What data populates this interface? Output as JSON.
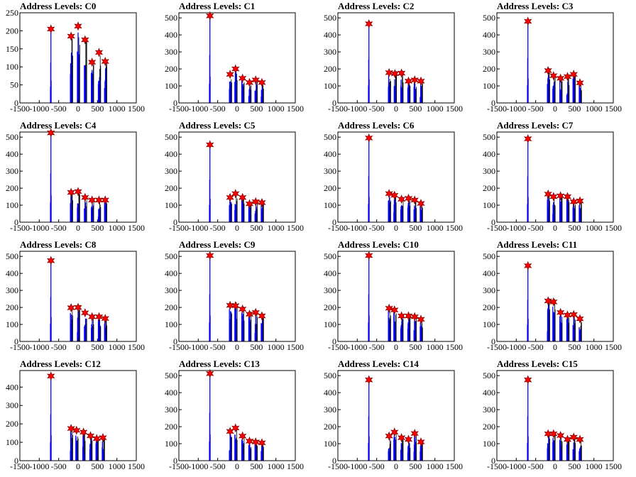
{
  "layout": {
    "columns": 4,
    "rows": 4
  },
  "axis": {
    "xlim": [
      -1500,
      1500
    ],
    "xticks": [
      -1500,
      -1000,
      -500,
      0,
      500,
      1000,
      1500
    ],
    "xtick_labels": [
      "-1500",
      "-1000",
      "-500",
      "0",
      "500",
      "1000",
      "1500"
    ]
  },
  "colors": {
    "hist": "#0000ff",
    "overlay": "#000000",
    "marker_fill": "#ff0000",
    "marker_edge": "#8b0000"
  },
  "chart_data": [
    {
      "type": "bar",
      "title": "Address Levels: C0",
      "ylim": [
        0,
        250
      ],
      "yticks": [
        0,
        50,
        100,
        150,
        200,
        250
      ],
      "xlim": [
        -1500,
        1500
      ],
      "peaks": [
        {
          "x": -700,
          "y": 205
        },
        {
          "x": -180,
          "y": 185
        },
        {
          "x": 0,
          "y": 213
        },
        {
          "x": 180,
          "y": 175
        },
        {
          "x": 360,
          "y": 113
        },
        {
          "x": 540,
          "y": 140
        },
        {
          "x": 700,
          "y": 115
        }
      ]
    },
    {
      "type": "bar",
      "title": "Address Levels: C1",
      "ylim": [
        0,
        530
      ],
      "yticks": [
        0,
        100,
        200,
        300,
        400,
        500
      ],
      "xlim": [
        -1500,
        1500
      ],
      "peaks": [
        {
          "x": -700,
          "y": 512
        },
        {
          "x": -180,
          "y": 168
        },
        {
          "x": -40,
          "y": 200
        },
        {
          "x": 140,
          "y": 145
        },
        {
          "x": 320,
          "y": 120
        },
        {
          "x": 480,
          "y": 135
        },
        {
          "x": 640,
          "y": 120
        }
      ]
    },
    {
      "type": "bar",
      "title": "Address Levels: C2",
      "ylim": [
        0,
        530
      ],
      "yticks": [
        0,
        100,
        200,
        300,
        400,
        500
      ],
      "xlim": [
        -1500,
        1500
      ],
      "peaks": [
        {
          "x": -700,
          "y": 465
        },
        {
          "x": -180,
          "y": 178
        },
        {
          "x": -30,
          "y": 172
        },
        {
          "x": 140,
          "y": 175
        },
        {
          "x": 320,
          "y": 128
        },
        {
          "x": 480,
          "y": 135
        },
        {
          "x": 640,
          "y": 128
        }
      ]
    },
    {
      "type": "bar",
      "title": "Address Levels: C3",
      "ylim": [
        0,
        530
      ],
      "yticks": [
        0,
        100,
        200,
        300,
        400,
        500
      ],
      "xlim": [
        -1500,
        1500
      ],
      "peaks": [
        {
          "x": -700,
          "y": 480
        },
        {
          "x": -180,
          "y": 190
        },
        {
          "x": -40,
          "y": 160
        },
        {
          "x": 140,
          "y": 145
        },
        {
          "x": 320,
          "y": 155
        },
        {
          "x": 480,
          "y": 168
        },
        {
          "x": 640,
          "y": 118
        }
      ]
    },
    {
      "type": "bar",
      "title": "Address Levels: C4",
      "ylim": [
        0,
        530
      ],
      "yticks": [
        0,
        100,
        200,
        300,
        400,
        500
      ],
      "xlim": [
        -1500,
        1500
      ],
      "peaks": [
        {
          "x": -700,
          "y": 525
        },
        {
          "x": -180,
          "y": 175
        },
        {
          "x": 0,
          "y": 180
        },
        {
          "x": 180,
          "y": 145
        },
        {
          "x": 360,
          "y": 130
        },
        {
          "x": 540,
          "y": 130
        },
        {
          "x": 700,
          "y": 130
        }
      ]
    },
    {
      "type": "bar",
      "title": "Address Levels: C5",
      "ylim": [
        0,
        530
      ],
      "yticks": [
        0,
        100,
        200,
        300,
        400,
        500
      ],
      "xlim": [
        -1500,
        1500
      ],
      "peaks": [
        {
          "x": -700,
          "y": 455
        },
        {
          "x": -180,
          "y": 145
        },
        {
          "x": -40,
          "y": 168
        },
        {
          "x": 140,
          "y": 145
        },
        {
          "x": 320,
          "y": 108
        },
        {
          "x": 480,
          "y": 120
        },
        {
          "x": 640,
          "y": 115
        }
      ]
    },
    {
      "type": "bar",
      "title": "Address Levels: C6",
      "ylim": [
        0,
        530
      ],
      "yticks": [
        0,
        100,
        200,
        300,
        400,
        500
      ],
      "xlim": [
        -1500,
        1500
      ],
      "peaks": [
        {
          "x": -700,
          "y": 495
        },
        {
          "x": -180,
          "y": 168
        },
        {
          "x": -40,
          "y": 158
        },
        {
          "x": 140,
          "y": 135
        },
        {
          "x": 320,
          "y": 140
        },
        {
          "x": 480,
          "y": 130
        },
        {
          "x": 640,
          "y": 110
        }
      ]
    },
    {
      "type": "bar",
      "title": "Address Levels: C7",
      "ylim": [
        0,
        530
      ],
      "yticks": [
        0,
        100,
        200,
        300,
        400,
        500
      ],
      "xlim": [
        -1500,
        1500
      ],
      "peaks": [
        {
          "x": -700,
          "y": 490
        },
        {
          "x": -180,
          "y": 165
        },
        {
          "x": -40,
          "y": 150
        },
        {
          "x": 140,
          "y": 155
        },
        {
          "x": 320,
          "y": 150
        },
        {
          "x": 480,
          "y": 120
        },
        {
          "x": 640,
          "y": 125
        }
      ]
    },
    {
      "type": "bar",
      "title": "Address Levels: C8",
      "ylim": [
        0,
        530
      ],
      "yticks": [
        0,
        100,
        200,
        300,
        400,
        500
      ],
      "xlim": [
        -1500,
        1500
      ],
      "peaks": [
        {
          "x": -700,
          "y": 475
        },
        {
          "x": -180,
          "y": 198
        },
        {
          "x": 0,
          "y": 200
        },
        {
          "x": 180,
          "y": 168
        },
        {
          "x": 360,
          "y": 145
        },
        {
          "x": 540,
          "y": 145
        },
        {
          "x": 700,
          "y": 135
        }
      ]
    },
    {
      "type": "bar",
      "title": "Address Levels: C9",
      "ylim": [
        0,
        530
      ],
      "yticks": [
        0,
        100,
        200,
        300,
        400,
        500
      ],
      "xlim": [
        -1500,
        1500
      ],
      "peaks": [
        {
          "x": -700,
          "y": 505
        },
        {
          "x": -180,
          "y": 212
        },
        {
          "x": -40,
          "y": 210
        },
        {
          "x": 140,
          "y": 190
        },
        {
          "x": 320,
          "y": 160
        },
        {
          "x": 480,
          "y": 170
        },
        {
          "x": 640,
          "y": 150
        }
      ]
    },
    {
      "type": "bar",
      "title": "Address Levels: C10",
      "ylim": [
        0,
        530
      ],
      "yticks": [
        0,
        100,
        200,
        300,
        400,
        500
      ],
      "xlim": [
        -1500,
        1500
      ],
      "peaks": [
        {
          "x": -700,
          "y": 505
        },
        {
          "x": -180,
          "y": 195
        },
        {
          "x": -40,
          "y": 185
        },
        {
          "x": 140,
          "y": 150
        },
        {
          "x": 320,
          "y": 150
        },
        {
          "x": 480,
          "y": 145
        },
        {
          "x": 640,
          "y": 130
        }
      ]
    },
    {
      "type": "bar",
      "title": "Address Levels: C11",
      "ylim": [
        0,
        530
      ],
      "yticks": [
        0,
        100,
        200,
        300,
        400,
        500
      ],
      "xlim": [
        -1500,
        1500
      ],
      "peaks": [
        {
          "x": -700,
          "y": 445
        },
        {
          "x": -180,
          "y": 238
        },
        {
          "x": -40,
          "y": 232
        },
        {
          "x": 140,
          "y": 170
        },
        {
          "x": 320,
          "y": 155
        },
        {
          "x": 480,
          "y": 158
        },
        {
          "x": 640,
          "y": 133
        }
      ]
    },
    {
      "type": "bar",
      "title": "Address Levels: C12",
      "ylim": [
        0,
        490
      ],
      "yticks": [
        0,
        100,
        200,
        300,
        400
      ],
      "xlim": [
        -1500,
        1500
      ],
      "peaks": [
        {
          "x": -700,
          "y": 460
        },
        {
          "x": -180,
          "y": 175
        },
        {
          "x": -40,
          "y": 165
        },
        {
          "x": 140,
          "y": 155
        },
        {
          "x": 320,
          "y": 135
        },
        {
          "x": 480,
          "y": 120
        },
        {
          "x": 640,
          "y": 125
        }
      ]
    },
    {
      "type": "bar",
      "title": "Address Levels: C13",
      "ylim": [
        0,
        530
      ],
      "yticks": [
        0,
        100,
        200,
        300,
        400,
        500
      ],
      "xlim": [
        -1500,
        1500
      ],
      "peaks": [
        {
          "x": -700,
          "y": 512
        },
        {
          "x": -180,
          "y": 172
        },
        {
          "x": -40,
          "y": 192
        },
        {
          "x": 140,
          "y": 145
        },
        {
          "x": 320,
          "y": 115
        },
        {
          "x": 480,
          "y": 110
        },
        {
          "x": 640,
          "y": 105
        }
      ]
    },
    {
      "type": "bar",
      "title": "Address Levels: C14",
      "ylim": [
        0,
        530
      ],
      "yticks": [
        0,
        100,
        200,
        300,
        400,
        500
      ],
      "xlim": [
        -1500,
        1500
      ],
      "peaks": [
        {
          "x": -700,
          "y": 475
        },
        {
          "x": -180,
          "y": 145
        },
        {
          "x": -40,
          "y": 168
        },
        {
          "x": 140,
          "y": 135
        },
        {
          "x": 320,
          "y": 125
        },
        {
          "x": 480,
          "y": 160
        },
        {
          "x": 640,
          "y": 110
        }
      ]
    },
    {
      "type": "bar",
      "title": "Address Levels: C15",
      "ylim": [
        0,
        530
      ],
      "yticks": [
        0,
        100,
        200,
        300,
        400,
        500
      ],
      "xlim": [
        -1500,
        1500
      ],
      "peaks": [
        {
          "x": -700,
          "y": 475
        },
        {
          "x": -180,
          "y": 158
        },
        {
          "x": -40,
          "y": 158
        },
        {
          "x": 140,
          "y": 148
        },
        {
          "x": 320,
          "y": 125
        },
        {
          "x": 480,
          "y": 138
        },
        {
          "x": 640,
          "y": 125
        }
      ]
    }
  ]
}
